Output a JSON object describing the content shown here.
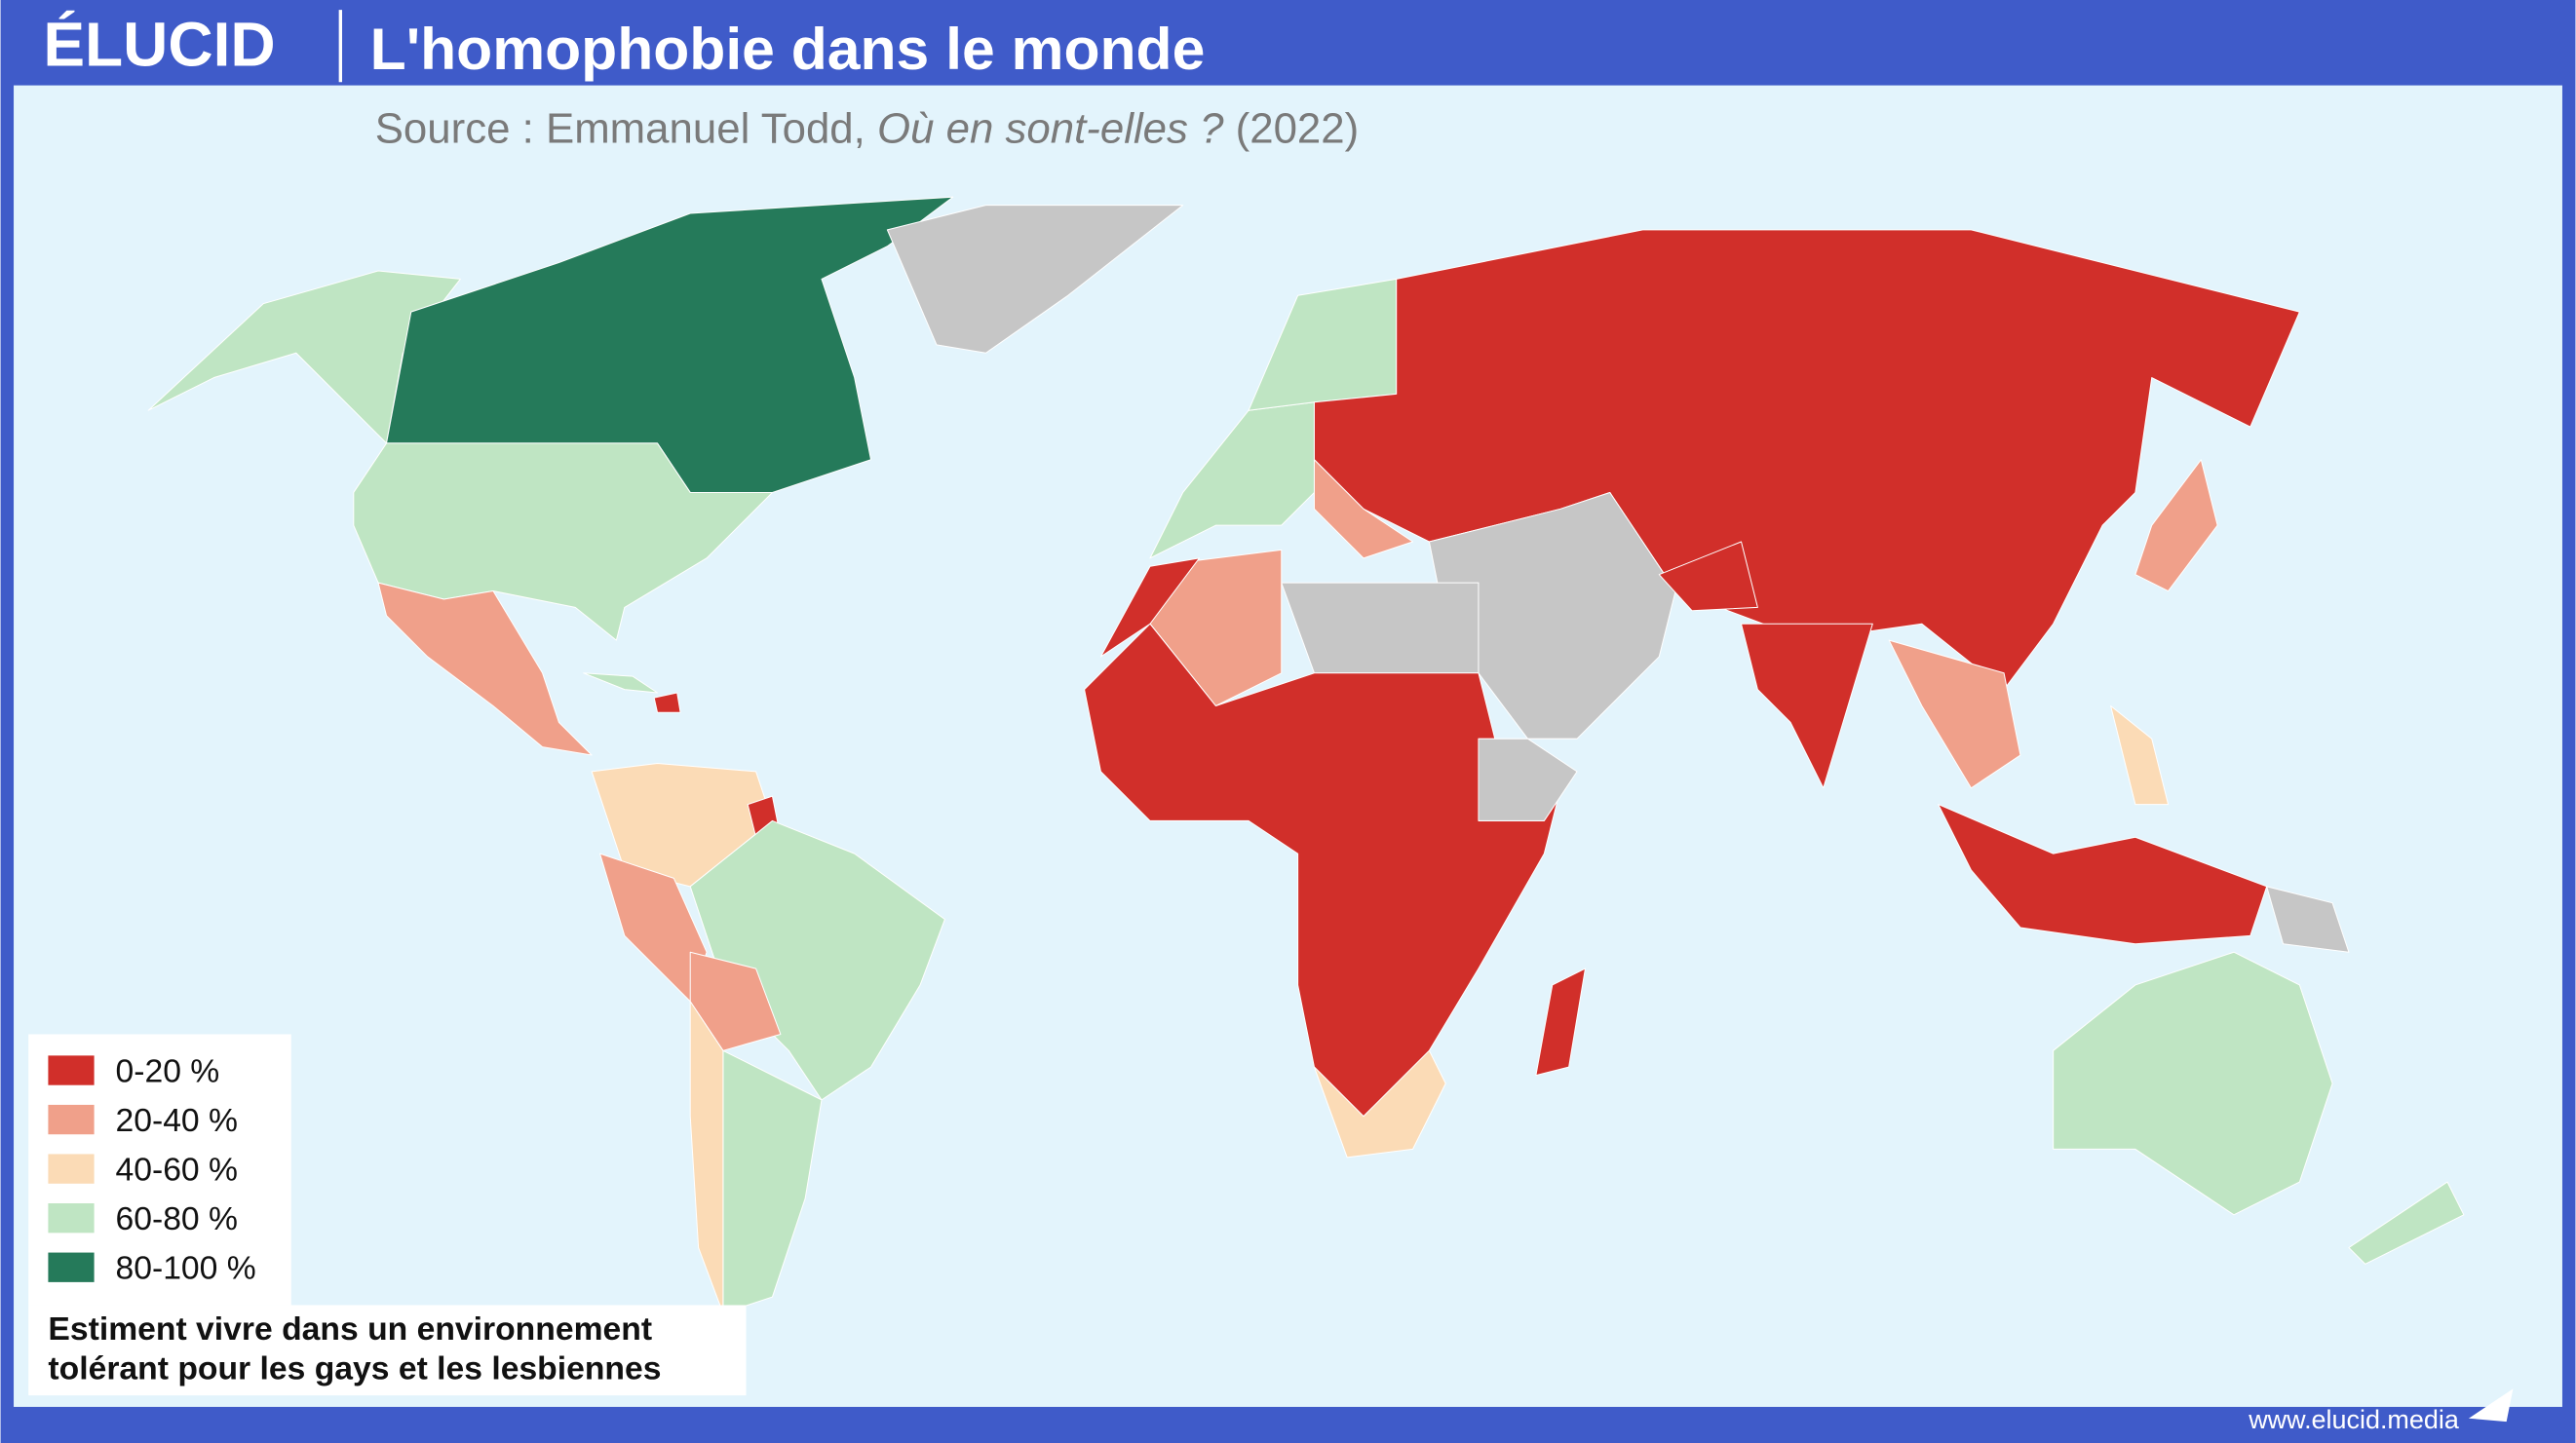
{
  "header": {
    "logo": "ÉLUCID",
    "title": "L'homophobie dans le monde"
  },
  "source": {
    "prefix": "Source : Emmanuel Todd, ",
    "book": "Où en sont-elles ?",
    "year": " (2022)"
  },
  "legend": {
    "items": [
      {
        "label": "0-20 %",
        "color": "#d12f2a"
      },
      {
        "label": "20-40 %",
        "color": "#f0a08a"
      },
      {
        "label": "40-60 %",
        "color": "#fbdbb6"
      },
      {
        "label": "60-80 %",
        "color": "#bfe5c3"
      },
      {
        "label": "80-100 %",
        "color": "#257a5a"
      }
    ],
    "note": [
      "Estiment vivre dans un environnement",
      "tolérant pour les gays et les lesbiennes"
    ]
  },
  "footer": {
    "url": "www.elucid.media"
  }
}
